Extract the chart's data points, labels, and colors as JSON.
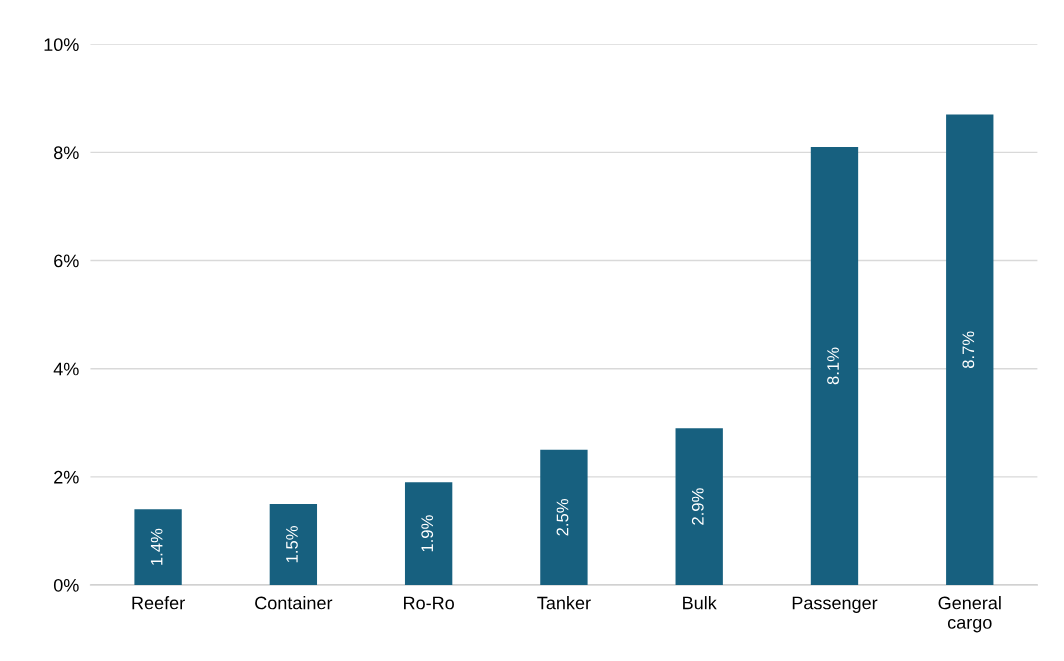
{
  "chart_data": {
    "type": "bar",
    "categories": [
      "Reefer",
      "Container",
      "Ro-Ro",
      "Tanker",
      "Bulk",
      "Passenger",
      "General\ncargo"
    ],
    "values": [
      1.4,
      1.5,
      1.9,
      2.5,
      2.9,
      8.1,
      8.7
    ],
    "value_labels": [
      "1.4%",
      "1.5%",
      "1.9%",
      "2.5%",
      "2.9%",
      "8.1%",
      "8.7%"
    ],
    "color": "#17607f",
    "ylim": [
      0,
      10
    ],
    "yticks": [
      {
        "value": 0,
        "label": "0%"
      },
      {
        "value": 2,
        "label": "2%"
      },
      {
        "value": 4,
        "label": "4%"
      },
      {
        "value": 6,
        "label": "6%"
      },
      {
        "value": 8,
        "label": "8%"
      },
      {
        "value": 10,
        "label": "10%"
      }
    ],
    "grid": "y",
    "legend": false
  }
}
